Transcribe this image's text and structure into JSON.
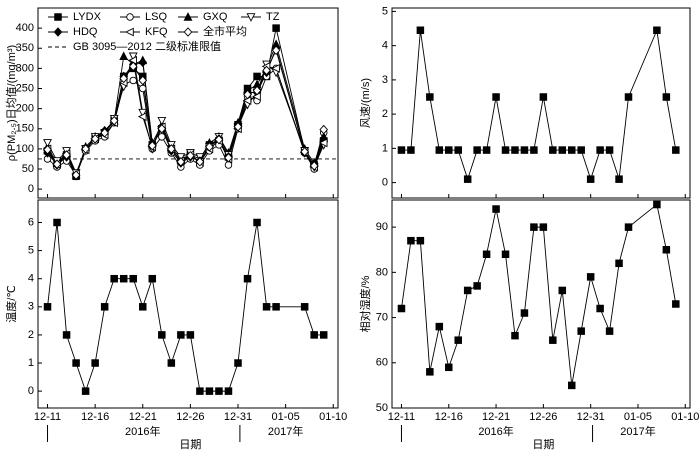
{
  "chart_data": [
    {
      "type": "line",
      "y_label": "ρ(PM₂.₅)日均值/(mg/m³)",
      "legend": "upper left",
      "xlim": [
        -1,
        30.5
      ],
      "ylim": [
        -22,
        450
      ],
      "yticks": [
        0,
        50,
        100,
        150,
        200,
        250,
        300,
        350,
        400
      ],
      "x": [
        0,
        1,
        2,
        3,
        4,
        5,
        6,
        7,
        8,
        9,
        10,
        11,
        12,
        13,
        14,
        15,
        16,
        17,
        18,
        19,
        20,
        21,
        22,
        23,
        24,
        27,
        28,
        29
      ],
      "reference_line": {
        "label": "GB 3095—2012 二级标准限值",
        "value": 75
      },
      "series": [
        {
          "name": "LYDX",
          "color": "#000000",
          "marker": "square",
          "filled": true,
          "values": [
            95,
            60,
            85,
            32,
            100,
            125,
            140,
            170,
            280,
            300,
            280,
            110,
            150,
            100,
            70,
            85,
            65,
            110,
            120,
            80,
            160,
            250,
            280,
            280,
            400,
            95,
            60,
            120
          ]
        },
        {
          "name": "LSQ",
          "color": "#000000",
          "marker": "circle",
          "filled": false,
          "values": [
            75,
            55,
            70,
            35,
            95,
            120,
            130,
            165,
            260,
            270,
            250,
            100,
            130,
            90,
            55,
            75,
            60,
            95,
            110,
            60,
            150,
            230,
            220,
            280,
            300,
            90,
            50,
            140
          ]
        },
        {
          "name": "GXQ",
          "color": "#000000",
          "marker": "triangle-up",
          "filled": true,
          "values": [
            105,
            65,
            90,
            35,
            105,
            130,
            145,
            170,
            330,
            310,
            320,
            115,
            160,
            105,
            75,
            85,
            75,
            115,
            130,
            90,
            165,
            245,
            260,
            300,
            360,
            100,
            65,
            130
          ]
        },
        {
          "name": "TZ",
          "color": "#000000",
          "marker": "triangle-down",
          "filled": false,
          "values": [
            115,
            70,
            95,
            40,
            100,
            130,
            140,
            175,
            255,
            330,
            190,
            100,
            170,
            110,
            80,
            90,
            80,
            105,
            130,
            85,
            155,
            210,
            240,
            310,
            290,
            95,
            55,
            110
          ]
        },
        {
          "name": "HDQ",
          "color": "#000000",
          "marker": "diamond",
          "filled": true,
          "values": [
            90,
            60,
            80,
            33,
            100,
            125,
            145,
            170,
            280,
            310,
            315,
            110,
            150,
            95,
            65,
            80,
            70,
            105,
            125,
            80,
            160,
            240,
            240,
            290,
            350,
            90,
            60,
            125
          ]
        },
        {
          "name": "KFQ",
          "color": "#000000",
          "marker": "triangle-left",
          "filled": false,
          "values": [
            100,
            62,
            88,
            38,
            98,
            125,
            135,
            165,
            265,
            320,
            180,
            105,
            155,
            100,
            70,
            85,
            68,
            100,
            120,
            75,
            150,
            220,
            230,
            305,
            300,
            92,
            55,
            115
          ]
        },
        {
          "name": "全市平均",
          "color": "#000000",
          "marker": "diamond",
          "filled": false,
          "values": [
            98,
            62,
            85,
            35,
            100,
            125,
            140,
            170,
            275,
            305,
            270,
            108,
            150,
            100,
            68,
            83,
            68,
            105,
            123,
            78,
            155,
            235,
            245,
            295,
            345,
            93,
            58,
            148
          ]
        }
      ]
    },
    {
      "type": "line",
      "y_label": "风速/(m/s)",
      "xlim": [
        -1,
        30.5
      ],
      "ylim": [
        -0.45,
        5.1
      ],
      "yticks": [
        0,
        1,
        2,
        3,
        4,
        5
      ],
      "x": [
        0,
        1,
        2,
        3,
        4,
        5,
        6,
        7,
        8,
        9,
        10,
        11,
        12,
        13,
        14,
        15,
        16,
        17,
        18,
        19,
        20,
        21,
        22,
        23,
        24,
        27,
        28,
        29
      ],
      "series": [
        {
          "color": "#000000",
          "marker": "square",
          "filled": true,
          "values": [
            0.95,
            0.95,
            4.45,
            2.5,
            0.95,
            0.95,
            0.95,
            0.1,
            0.95,
            0.95,
            2.5,
            0.95,
            0.95,
            0.95,
            0.95,
            2.5,
            0.95,
            0.95,
            0.95,
            0.95,
            0.1,
            0.95,
            0.95,
            0.1,
            2.5,
            4.45,
            2.5,
            0.95
          ]
        }
      ]
    },
    {
      "type": "line",
      "y_label": "温度/℃",
      "x_label": "日期",
      "x_groups": [
        "2016年",
        "2017年"
      ],
      "xlim": [
        -1,
        30.5
      ],
      "ylim": [
        -0.6,
        6.8
      ],
      "yticks": [
        0,
        1,
        2,
        3,
        4,
        5,
        6
      ],
      "xticks": [
        {
          "value": 0,
          "label": "12-11"
        },
        {
          "value": 5,
          "label": "12-16"
        },
        {
          "value": 10,
          "label": "12-21"
        },
        {
          "value": 15,
          "label": "12-26"
        },
        {
          "value": 20,
          "label": "12-31"
        },
        {
          "value": 25,
          "label": "01-05"
        },
        {
          "value": 30,
          "label": "01-10"
        }
      ],
      "x": [
        0,
        1,
        2,
        3,
        4,
        5,
        6,
        7,
        8,
        9,
        10,
        11,
        12,
        13,
        14,
        15,
        16,
        17,
        18,
        19,
        20,
        21,
        22,
        23,
        24,
        27,
        28,
        29
      ],
      "series": [
        {
          "color": "#000000",
          "marker": "square",
          "filled": true,
          "values": [
            3,
            6,
            2,
            1,
            0,
            1,
            3,
            4,
            4,
            4,
            3,
            4,
            2,
            1,
            2,
            2,
            0,
            0,
            0,
            0,
            1,
            4,
            6,
            3,
            3,
            3,
            2,
            2
          ]
        }
      ]
    },
    {
      "type": "line",
      "y_label": "相对湿度/%",
      "x_label": "日期",
      "x_groups": [
        "2016年",
        "2017年"
      ],
      "xlim": [
        -1,
        30.5
      ],
      "ylim": [
        50,
        96
      ],
      "yticks": [
        50,
        60,
        70,
        80,
        90
      ],
      "xticks": [
        {
          "value": 0,
          "label": "12-11"
        },
        {
          "value": 5,
          "label": "12-16"
        },
        {
          "value": 10,
          "label": "12-21"
        },
        {
          "value": 15,
          "label": "12-26"
        },
        {
          "value": 20,
          "label": "12-31"
        },
        {
          "value": 25,
          "label": "01-05"
        },
        {
          "value": 30,
          "label": "01-10"
        }
      ],
      "x": [
        0,
        1,
        2,
        3,
        4,
        5,
        6,
        7,
        8,
        9,
        10,
        11,
        12,
        13,
        14,
        15,
        16,
        17,
        18,
        19,
        20,
        21,
        22,
        23,
        24,
        27,
        28,
        29
      ],
      "series": [
        {
          "color": "#000000",
          "marker": "square",
          "filled": true,
          "values": [
            72,
            87,
            87,
            58,
            68,
            59,
            65,
            76,
            77,
            84,
            94,
            84,
            66,
            71,
            90,
            90,
            65,
            76,
            55,
            67,
            79,
            72,
            67,
            82,
            90,
            95,
            85,
            73
          ]
        }
      ]
    }
  ]
}
